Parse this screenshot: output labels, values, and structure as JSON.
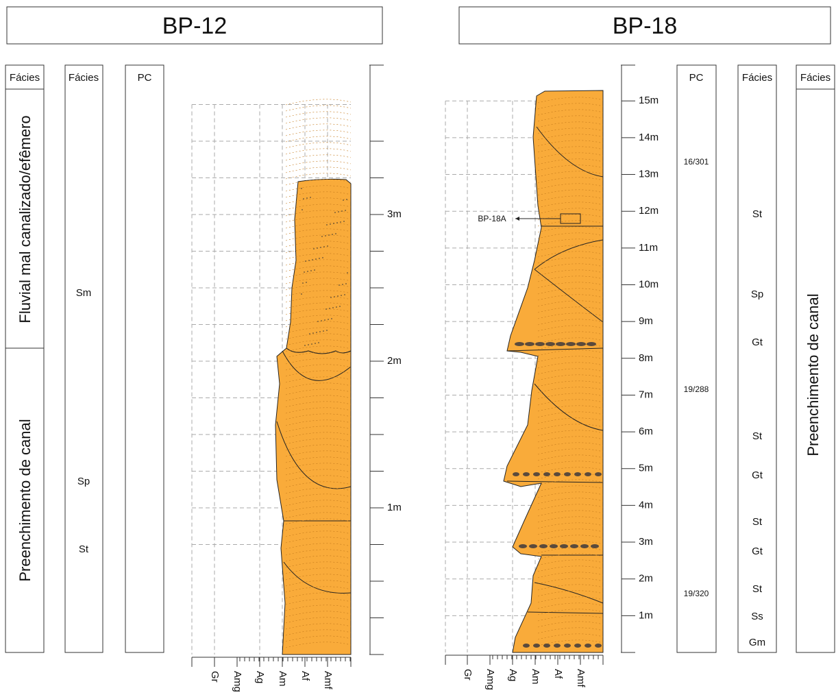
{
  "logs": [
    {
      "title": "BP-12",
      "association_header": "Fácies",
      "facies_header": "Fácies",
      "pc_header": "PC",
      "associations": [
        "Fluvial mal canalizado/efêmero",
        "Preenchimento de canal"
      ],
      "facies": [
        "Sm",
        "Sp",
        "St"
      ],
      "pc": [],
      "depth_labels": [
        "3m",
        "2m",
        "1m"
      ],
      "grain_sizes": [
        "Gr",
        "Amg",
        "Ag",
        "Am",
        "Af",
        "Amf"
      ]
    },
    {
      "title": "BP-18",
      "association_header": "Fácies",
      "facies_header": "Fácies",
      "pc_header": "PC",
      "associations": [
        "Preenchimento de canal"
      ],
      "facies": [
        "St",
        "Sp",
        "Gt",
        "St",
        "Gt",
        "St",
        "Gt",
        "St",
        "Ss",
        "Gm"
      ],
      "pc": [
        "16/301",
        "19/288",
        "19/320"
      ],
      "sample": "BP-18A",
      "depth_labels": [
        "15m",
        "14m",
        "13m",
        "12m",
        "11m",
        "10m",
        "9m",
        "8m",
        "7m",
        "6m",
        "5m",
        "4m",
        "3m",
        "2m",
        "1m"
      ],
      "grain_sizes": [
        "Gr",
        "Amg",
        "Ag",
        "Am",
        "Af",
        "Amf"
      ]
    }
  ]
}
